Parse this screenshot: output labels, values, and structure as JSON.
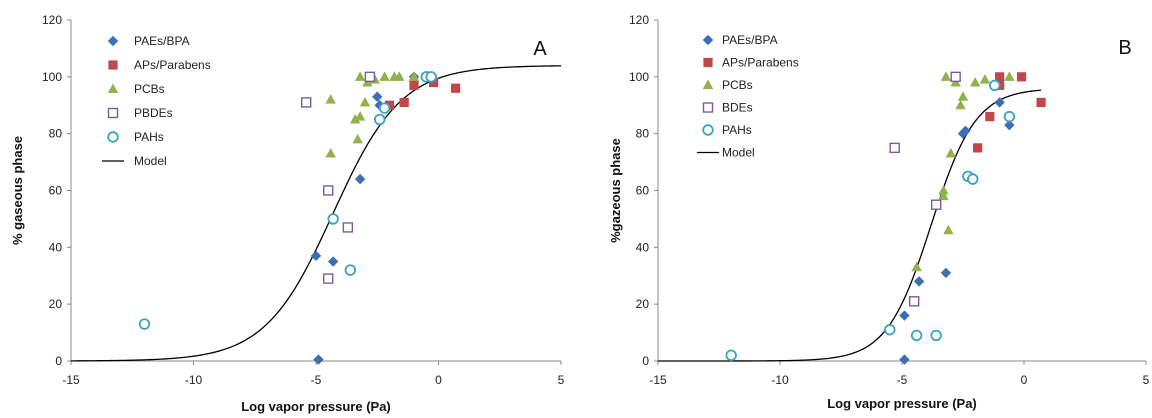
{
  "chart_data": [
    {
      "type": "scatter",
      "panel_label": "A",
      "xlabel": "Log vapor pressure (Pa)",
      "ylabel": "% gaseous phase",
      "xlim": [
        -15,
        5
      ],
      "ylim": [
        0,
        120
      ],
      "xticks": [
        -15,
        -10,
        -5,
        0,
        5
      ],
      "yticks": [
        0,
        20,
        40,
        60,
        80,
        100,
        120
      ],
      "grid": false,
      "legend_position": "top-left",
      "series": [
        {
          "name": "PAEs/BPA",
          "marker": "diamond",
          "color": "#3d6fb5",
          "points": [
            [
              -4.9,
              0.5
            ],
            [
              -5.0,
              37
            ],
            [
              -4.3,
              35
            ],
            [
              -3.2,
              64
            ],
            [
              -2.5,
              93
            ],
            [
              -2.4,
              90
            ],
            [
              -1.0,
              100
            ]
          ]
        },
        {
          "name": "APs/Parabens",
          "marker": "square",
          "color": "#c0474a",
          "points": [
            [
              -2.0,
              90
            ],
            [
              -1.4,
              91
            ],
            [
              -1.0,
              97
            ],
            [
              -0.2,
              98
            ],
            [
              0.7,
              96
            ]
          ]
        },
        {
          "name": "PCBs",
          "marker": "triangle",
          "color": "#8db34a",
          "points": [
            [
              -4.4,
              73
            ],
            [
              -4.4,
              92
            ],
            [
              -3.3,
              78
            ],
            [
              -3.4,
              85
            ],
            [
              -3.2,
              86
            ],
            [
              -3.0,
              91
            ],
            [
              -3.2,
              100
            ],
            [
              -2.9,
              98
            ],
            [
              -2.6,
              99
            ],
            [
              -2.7,
              100
            ],
            [
              -2.2,
              100
            ],
            [
              -1.8,
              100
            ],
            [
              -1.6,
              100
            ],
            [
              -1.0,
              100
            ],
            [
              -0.4,
              100
            ]
          ]
        },
        {
          "name": "PBDEs",
          "marker": "open-square",
          "color": "#7a5c9e",
          "points": [
            [
              -5.4,
              91
            ],
            [
              -4.5,
              60
            ],
            [
              -3.7,
              47
            ],
            [
              -4.5,
              29
            ],
            [
              -2.8,
              100
            ]
          ]
        },
        {
          "name": "PAHs",
          "marker": "open-circle",
          "color": "#3aa2c2",
          "points": [
            [
              -12.0,
              13
            ],
            [
              -4.3,
              50
            ],
            [
              -3.6,
              32
            ],
            [
              -2.4,
              85
            ],
            [
              -2.2,
              89
            ],
            [
              -0.5,
              100
            ],
            [
              -0.3,
              100
            ]
          ]
        }
      ],
      "model": {
        "name": "Model",
        "color": "#000000",
        "top": 104,
        "center": -4.3,
        "slope": 0.72
      }
    },
    {
      "type": "scatter",
      "panel_label": "B",
      "xlabel": "Log vapor pressure (Pa)",
      "ylabel": "%gazeous phase",
      "xlim": [
        -15,
        5
      ],
      "ylim": [
        0,
        120
      ],
      "xticks": [
        -15,
        -10,
        -5,
        0,
        5
      ],
      "yticks": [
        0,
        20,
        40,
        60,
        80,
        100,
        120
      ],
      "grid": false,
      "legend_position": "top-left",
      "series": [
        {
          "name": "PAEs/BPA",
          "marker": "diamond",
          "color": "#3d6fb5",
          "points": [
            [
              -4.9,
              0.5
            ],
            [
              -4.9,
              16
            ],
            [
              -4.3,
              28
            ],
            [
              -3.2,
              31
            ],
            [
              -2.5,
              80
            ],
            [
              -2.4,
              81
            ],
            [
              -1.0,
              91
            ],
            [
              -0.6,
              83
            ]
          ]
        },
        {
          "name": "APs/Parabens",
          "marker": "square",
          "color": "#c0474a",
          "points": [
            [
              -1.9,
              75
            ],
            [
              -1.4,
              86
            ],
            [
              -1.0,
              100
            ],
            [
              -1.0,
              97
            ],
            [
              -0.1,
              100
            ],
            [
              0.7,
              91
            ]
          ]
        },
        {
          "name": "PCBs",
          "marker": "triangle",
          "color": "#8db34a",
          "points": [
            [
              -4.4,
              33
            ],
            [
              -3.3,
              58
            ],
            [
              -3.3,
              60
            ],
            [
              -3.1,
              46
            ],
            [
              -3.0,
              73
            ],
            [
              -3.2,
              100
            ],
            [
              -2.6,
              90
            ],
            [
              -2.5,
              93
            ],
            [
              -2.8,
              98
            ],
            [
              -2.0,
              98
            ],
            [
              -1.6,
              99
            ],
            [
              -0.6,
              100
            ]
          ]
        },
        {
          "name": "BDEs",
          "marker": "open-square",
          "color": "#7a5c9e",
          "points": [
            [
              -5.3,
              75
            ],
            [
              -3.6,
              55
            ],
            [
              -4.5,
              21
            ],
            [
              -2.8,
              100
            ]
          ]
        },
        {
          "name": "PAHs",
          "marker": "open-circle",
          "color": "#3aa2c2",
          "points": [
            [
              -12.0,
              2
            ],
            [
              -5.5,
              11
            ],
            [
              -4.4,
              9
            ],
            [
              -3.6,
              9
            ],
            [
              -2.3,
              65
            ],
            [
              -2.1,
              64
            ],
            [
              -1.2,
              97
            ],
            [
              -0.6,
              86
            ]
          ]
        }
      ],
      "model": {
        "name": "Model",
        "color": "#000000",
        "top": 96,
        "center": -3.8,
        "slope": 1.1,
        "xmax": 0.7
      }
    }
  ]
}
